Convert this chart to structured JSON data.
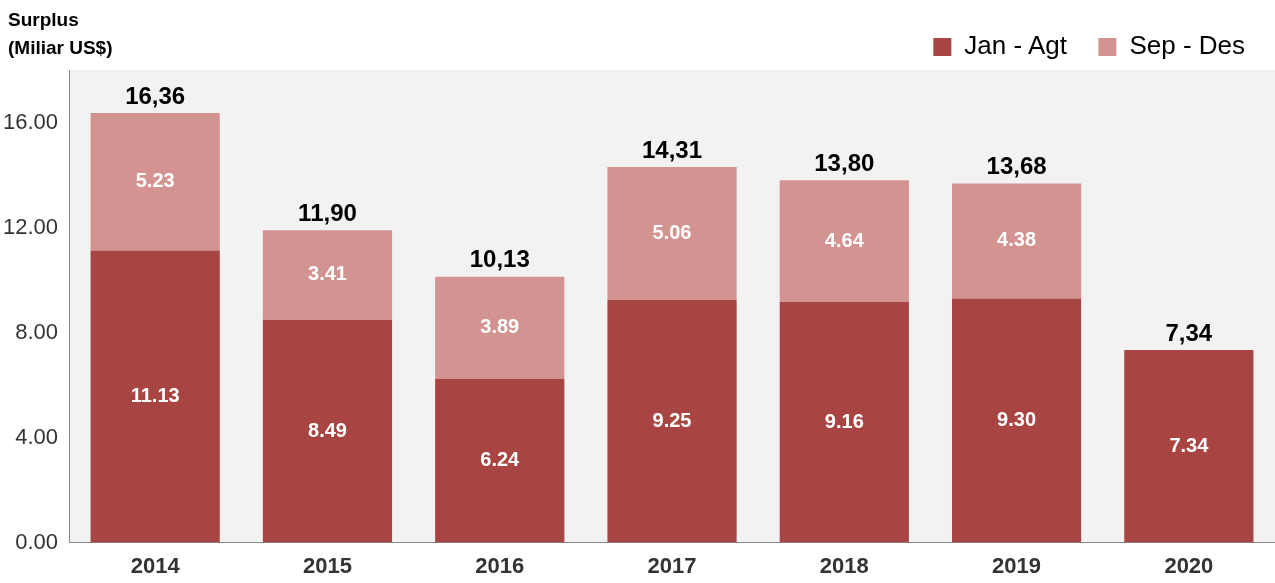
{
  "chart_data": {
    "type": "bar",
    "ylabel": "Surplus (Miliar US$)",
    "stacked": true,
    "categories": [
      "2014",
      "2015",
      "2016",
      "2017",
      "2018",
      "2019",
      "2020"
    ],
    "series": [
      {
        "name": "Jan - Agt",
        "color": "#a84442",
        "values": [
          11.13,
          8.49,
          6.24,
          9.25,
          9.16,
          9.3,
          7.34
        ],
        "value_labels": [
          "11.13",
          "8.49",
          "6.24",
          "9.25",
          "9.16",
          "9.30",
          "7.34"
        ]
      },
      {
        "name": "Sep - Des",
        "color": "#d39391",
        "values": [
          5.23,
          3.41,
          3.89,
          5.06,
          4.64,
          4.38,
          null
        ],
        "value_labels": [
          "5.23",
          "3.41",
          "3.89",
          "5.06",
          "4.64",
          "4.38",
          null
        ]
      }
    ],
    "totals": [
      "16,36",
      "11,90",
      "10,13",
      "14,31",
      "13,80",
      "13,68",
      "7,34"
    ],
    "ylim": [
      0,
      18
    ],
    "yticks": [
      {
        "value": 0,
        "label": "0.00"
      },
      {
        "value": 4,
        "label": "4.00"
      },
      {
        "value": 8,
        "label": "8.00"
      },
      {
        "value": 12,
        "label": "12.00"
      },
      {
        "value": 16,
        "label": "16.00"
      }
    ],
    "grid": false,
    "legend": "top right"
  }
}
